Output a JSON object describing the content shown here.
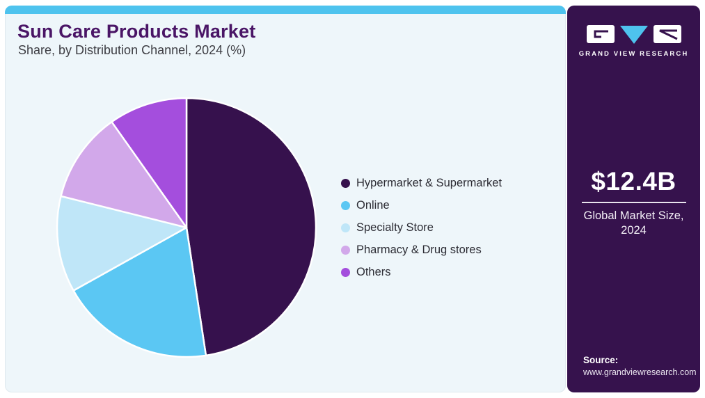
{
  "header": {
    "title": "Sun Care Products Market",
    "subtitle": "Share, by Distribution Channel, 2024 (%)"
  },
  "chart_data": {
    "type": "pie",
    "title": "Sun Care Products Market Share, by Distribution Channel, 2024 (%)",
    "categories": [
      "Hypermarket & Supermarket",
      "Online",
      "Specialty Store",
      "Pharmacy & Drug stores",
      "Others"
    ],
    "values": [
      47.6,
      19.3,
      12.0,
      11.3,
      9.8
    ],
    "unit": "%",
    "colors": [
      "#36114d",
      "#5bc7f3",
      "#bfe6f8",
      "#d2a8ea",
      "#a44edd"
    ],
    "start_angle_deg": 0,
    "direction": "clockwise",
    "slice_border_color": "#ffffff",
    "legend_position": "right",
    "data_labels": false
  },
  "sidebar": {
    "logo": {
      "brand": "GRAND VIEW RESEARCH",
      "triangle_color": "#4ec3ee",
      "block_color": "#ffffff",
      "glyph_color": "#36124d"
    },
    "market_size": {
      "value": "$12.4B",
      "label_line1": "Global Market Size,",
      "label_line2": "2024"
    },
    "source": {
      "label": "Source:",
      "url": "www.grandviewresearch.com"
    }
  },
  "style_colors": {
    "topbar": "#4ec3ee",
    "card_background": "#eef6fa",
    "sidebar_background": "#36124d",
    "title_color": "#4a1566"
  }
}
